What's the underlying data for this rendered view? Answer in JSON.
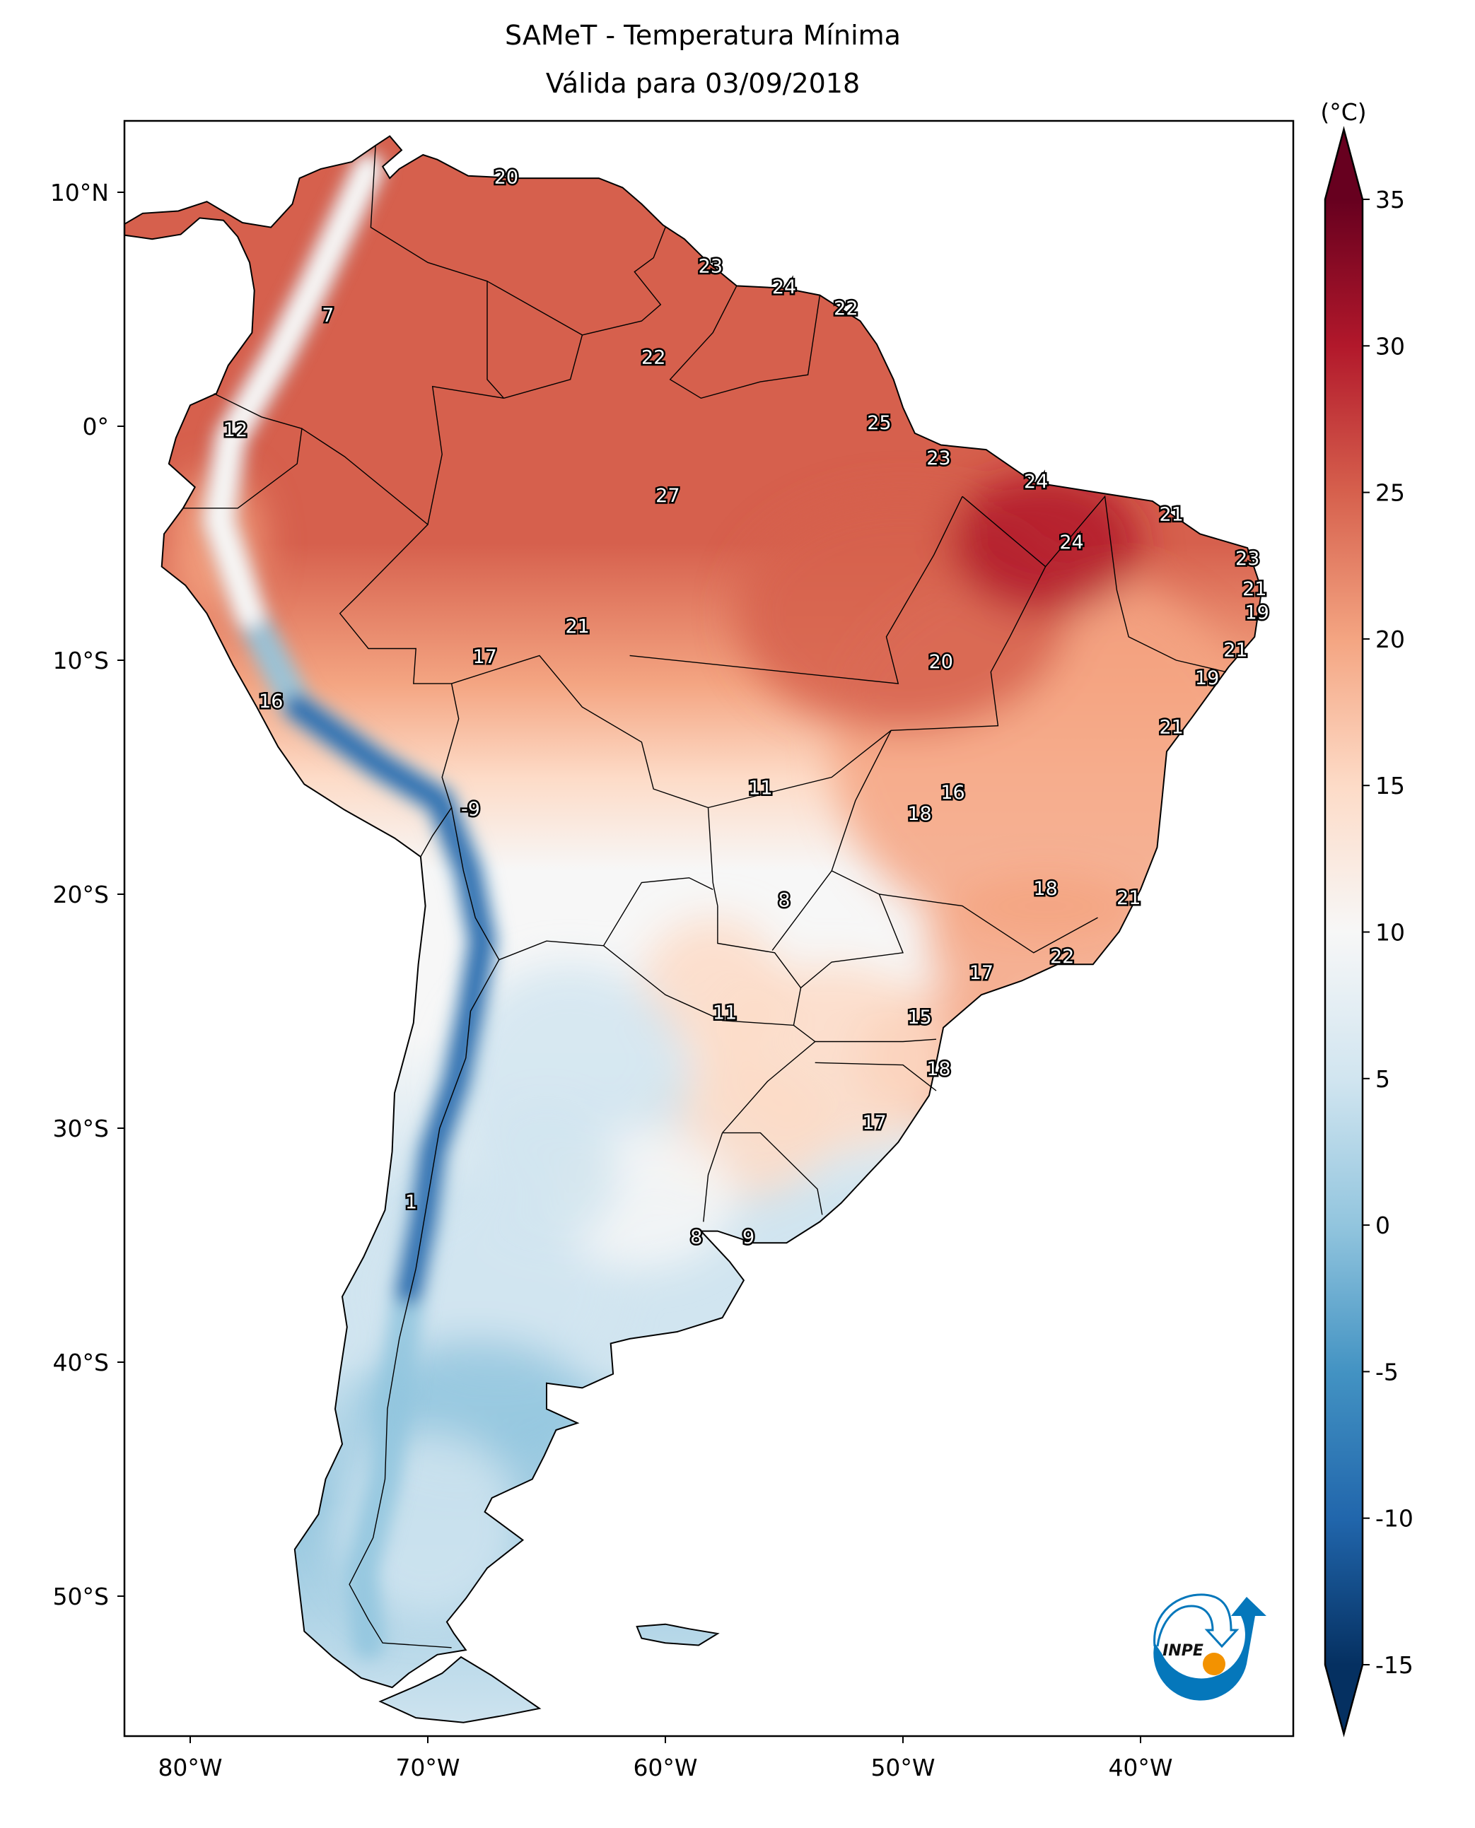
{
  "title": {
    "line1": "SAMeT - Temperatura Mínima",
    "line2": "Válida para 03/09/2018"
  },
  "chart_data": {
    "type": "heatmap",
    "subtype": "filled contour map",
    "title": "SAMeT - Temperatura Mínima Válida para 03/09/2018",
    "variable": "Temperatura Mínima",
    "date": "03/09/2018",
    "extent": {
      "lon": [
        -82.8,
        -33.6
      ],
      "lat": [
        -56,
        13
      ]
    },
    "x_ticks": [
      {
        "value": -80,
        "label": "80°W"
      },
      {
        "value": -70,
        "label": "70°W"
      },
      {
        "value": -60,
        "label": "60°W"
      },
      {
        "value": -50,
        "label": "50°W"
      },
      {
        "value": -40,
        "label": "40°W"
      }
    ],
    "y_ticks": [
      {
        "value": 10,
        "label": "10°N"
      },
      {
        "value": 0,
        "label": "0°"
      },
      {
        "value": -10,
        "label": "10°S"
      },
      {
        "value": -20,
        "label": "20°S"
      },
      {
        "value": -30,
        "label": "30°S"
      },
      {
        "value": -40,
        "label": "40°S"
      },
      {
        "value": -50,
        "label": "50°S"
      }
    ],
    "colorbar": {
      "unit": "(°C)",
      "colormap": "RdBu_r",
      "range": [
        -15,
        35
      ],
      "extend": "both",
      "ticks": [
        {
          "value": 35,
          "label": "35",
          "color": "#67001f"
        },
        {
          "value": 30,
          "label": "30",
          "color": "#b2182b"
        },
        {
          "value": 25,
          "label": "25",
          "color": "#d6604d"
        },
        {
          "value": 20,
          "label": "20",
          "color": "#f4a582"
        },
        {
          "value": 15,
          "label": "15",
          "color": "#fddbc7"
        },
        {
          "value": 10,
          "label": "10",
          "color": "#f7f7f7"
        },
        {
          "value": 5,
          "label": "5",
          "color": "#d1e5f0"
        },
        {
          "value": 0,
          "label": "0",
          "color": "#92c5de"
        },
        {
          "value": -5,
          "label": "-5",
          "color": "#4393c3"
        },
        {
          "value": -10,
          "label": "-10",
          "color": "#2166ac"
        },
        {
          "value": -15,
          "label": "-15",
          "color": "#053061"
        }
      ]
    },
    "station_values": [
      {
        "lon": -66.7,
        "lat": 10.6,
        "value": "20"
      },
      {
        "lon": -58.1,
        "lat": 6.8,
        "value": "23"
      },
      {
        "lon": -55.0,
        "lat": 5.9,
        "value": "24"
      },
      {
        "lon": -52.4,
        "lat": 5.0,
        "value": "22"
      },
      {
        "lon": -74.2,
        "lat": 4.7,
        "value": "7"
      },
      {
        "lon": -60.5,
        "lat": 2.9,
        "value": "22"
      },
      {
        "lon": -78.1,
        "lat": -0.2,
        "value": "12"
      },
      {
        "lon": -51.0,
        "lat": 0.1,
        "value": "25"
      },
      {
        "lon": -48.5,
        "lat": -1.4,
        "value": "23"
      },
      {
        "lon": -44.4,
        "lat": -2.4,
        "value": "24"
      },
      {
        "lon": -59.9,
        "lat": -3.0,
        "value": "27"
      },
      {
        "lon": -38.7,
        "lat": -3.8,
        "value": "21"
      },
      {
        "lon": -42.9,
        "lat": -5.0,
        "value": "24"
      },
      {
        "lon": -35.5,
        "lat": -5.7,
        "value": "23"
      },
      {
        "lon": -35.2,
        "lat": -7.0,
        "value": "21"
      },
      {
        "lon": -35.1,
        "lat": -8.0,
        "value": "19"
      },
      {
        "lon": -63.7,
        "lat": -8.6,
        "value": "21"
      },
      {
        "lon": -67.6,
        "lat": -9.9,
        "value": "17"
      },
      {
        "lon": -36.0,
        "lat": -9.6,
        "value": "21"
      },
      {
        "lon": -48.4,
        "lat": -10.1,
        "value": "20"
      },
      {
        "lon": -37.2,
        "lat": -10.8,
        "value": "19"
      },
      {
        "lon": -76.6,
        "lat": -11.8,
        "value": "16"
      },
      {
        "lon": -38.7,
        "lat": -12.9,
        "value": "21"
      },
      {
        "lon": -56.0,
        "lat": -15.5,
        "value": "11"
      },
      {
        "lon": -47.9,
        "lat": -15.7,
        "value": "16"
      },
      {
        "lon": -49.3,
        "lat": -16.6,
        "value": "18"
      },
      {
        "lon": -68.2,
        "lat": -16.4,
        "value": "-9"
      },
      {
        "lon": -44.0,
        "lat": -19.8,
        "value": "18"
      },
      {
        "lon": -40.5,
        "lat": -20.2,
        "value": "21"
      },
      {
        "lon": -55.0,
        "lat": -20.3,
        "value": "8"
      },
      {
        "lon": -43.3,
        "lat": -22.7,
        "value": "22"
      },
      {
        "lon": -46.7,
        "lat": -23.4,
        "value": "17"
      },
      {
        "lon": -57.5,
        "lat": -25.1,
        "value": "11"
      },
      {
        "lon": -49.3,
        "lat": -25.3,
        "value": "15"
      },
      {
        "lon": -48.5,
        "lat": -27.5,
        "value": "18"
      },
      {
        "lon": -51.2,
        "lat": -29.8,
        "value": "17"
      },
      {
        "lon": -70.7,
        "lat": -33.2,
        "value": "1"
      },
      {
        "lon": -58.7,
        "lat": -34.7,
        "value": "8"
      },
      {
        "lon": -56.5,
        "lat": -34.7,
        "value": "9"
      }
    ]
  },
  "logo": {
    "text": "INPE",
    "ring_color": "#0577bb",
    "dot_color": "#f39200"
  }
}
